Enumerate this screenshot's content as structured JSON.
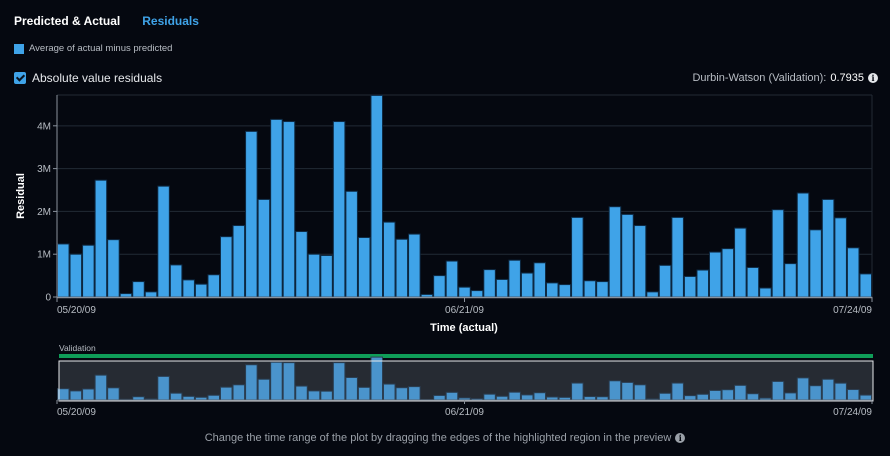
{
  "tabs": [
    {
      "label": "Predicted & Actual",
      "active": false
    },
    {
      "label": "Residuals",
      "active": true
    }
  ],
  "legend": {
    "label": "Average of actual minus predicted",
    "color": "#3fa3e8"
  },
  "checkbox": {
    "label": "Absolute value residuals",
    "checked": true
  },
  "durbin_watson": {
    "label": "Durbin-Watson (Validation):",
    "value": "0.7935",
    "icon": "info-icon"
  },
  "preview": {
    "label": "Validation",
    "bar_color": "#0f9d58"
  },
  "hint": {
    "text": "Change the time range of the plot by dragging the edges of the highlighted region in the preview",
    "icon": "info-icon"
  },
  "chart_data": {
    "type": "bar",
    "title": "",
    "xlabel": "Time (actual)",
    "ylabel": "Residual",
    "ylim": [
      0,
      4.72
    ],
    "yticks": [
      {
        "v": 0,
        "label": "0"
      },
      {
        "v": 1,
        "label": "1M"
      },
      {
        "v": 2,
        "label": "2M"
      },
      {
        "v": 3,
        "label": "3M"
      },
      {
        "v": 4,
        "label": "4M"
      }
    ],
    "xticks": [
      {
        "i": 0,
        "label": "05/20/09"
      },
      {
        "i": 32.5,
        "label": "06/21/09"
      },
      {
        "i": 65,
        "label": "07/24/09"
      }
    ],
    "grid": true,
    "series": [
      {
        "name": "Average of actual minus predicted",
        "unit": "M",
        "values": [
          1.24,
          1.0,
          1.21,
          2.73,
          1.34,
          0.08,
          0.36,
          0.12,
          2.59,
          0.75,
          0.4,
          0.3,
          0.52,
          1.41,
          1.67,
          3.87,
          2.28,
          4.15,
          4.1,
          1.53,
          1.0,
          0.97,
          4.1,
          2.47,
          1.39,
          4.71,
          1.75,
          1.35,
          1.47,
          0.06,
          0.5,
          0.84,
          0.23,
          0.15,
          0.64,
          0.41,
          0.86,
          0.56,
          0.8,
          0.33,
          0.29,
          1.86,
          0.38,
          0.36,
          2.11,
          1.93,
          1.67,
          0.12,
          0.74,
          1.86,
          0.48,
          0.63,
          1.05,
          1.13,
          1.61,
          0.69,
          0.21,
          2.04,
          0.78,
          2.43,
          1.57,
          2.28,
          1.85,
          1.15,
          0.54
        ]
      }
    ]
  }
}
